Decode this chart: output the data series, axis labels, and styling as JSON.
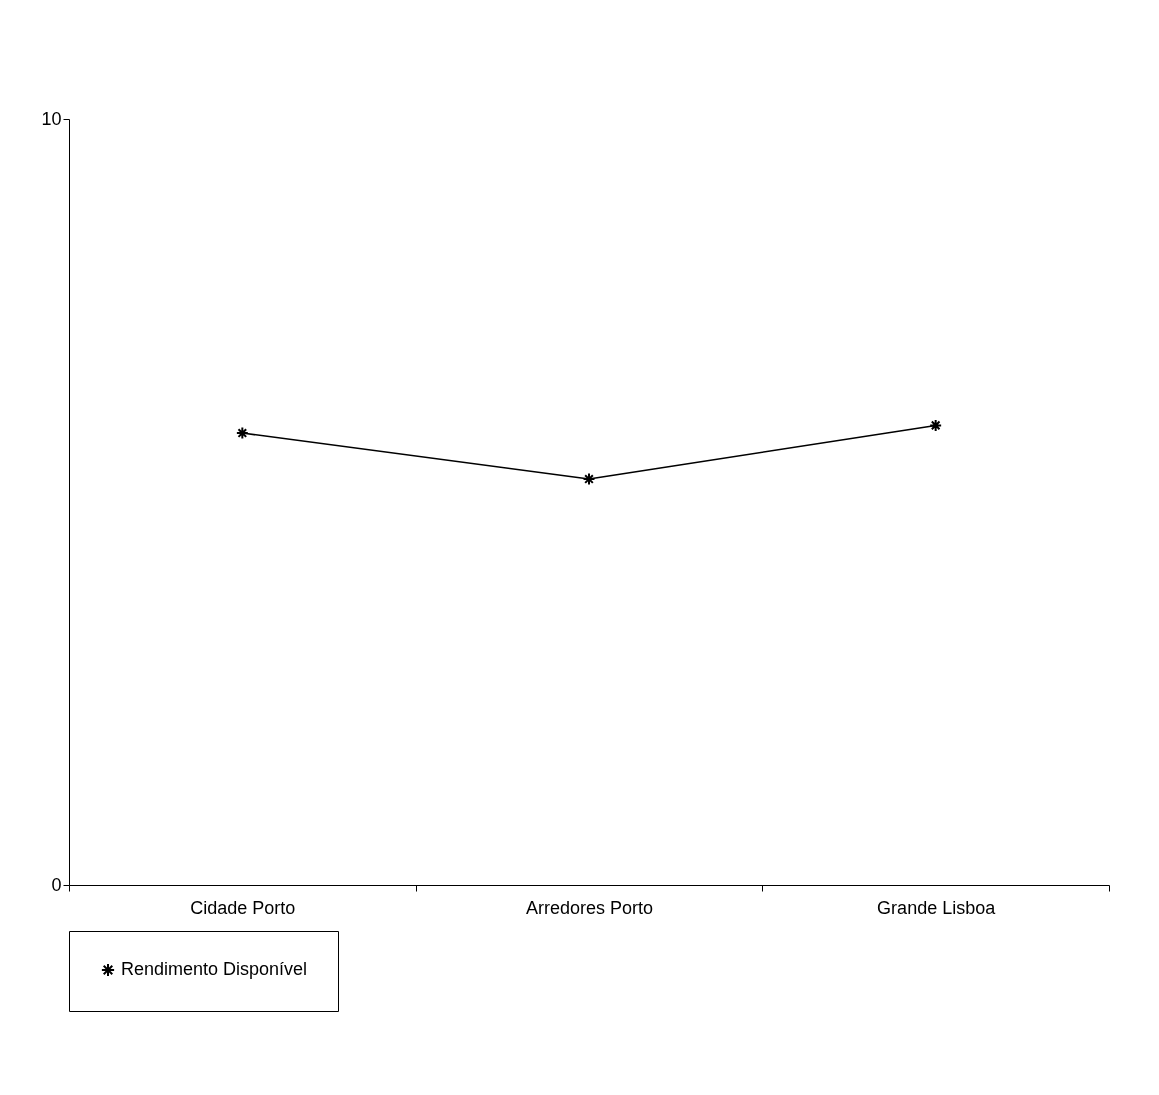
{
  "chart_data": {
    "type": "line",
    "categories": [
      "Cidade Porto",
      "Arredores Porto",
      "Grande Lisboa"
    ],
    "series": [
      {
        "name": "Rendimento Disponível",
        "color": "#000000",
        "values": [
          5.9,
          5.3,
          6.0
        ]
      }
    ],
    "ylim": [
      0,
      10
    ],
    "yticks": [
      0,
      10
    ],
    "grid": false,
    "legend": "bottom",
    "marker": "cross"
  }
}
